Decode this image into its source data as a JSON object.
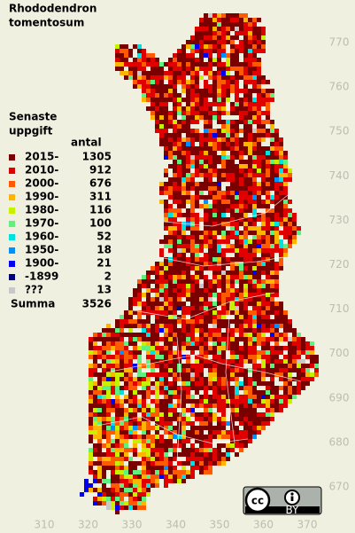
{
  "title": [
    "Rhododendron",
    "tomentosum"
  ],
  "legend": {
    "heading": [
      "Senaste",
      "uppgift"
    ],
    "count_header": "antal",
    "rows": [
      {
        "label": "2015-",
        "color": "#7a0000",
        "count": 1305
      },
      {
        "label": "2010-",
        "color": "#e00000",
        "count": 912
      },
      {
        "label": "2000-",
        "color": "#ff5a00",
        "count": 676
      },
      {
        "label": "1990-",
        "color": "#ffb400",
        "count": 311
      },
      {
        "label": "1980-",
        "color": "#c8f000",
        "count": 116
      },
      {
        "label": "1970-",
        "color": "#60f080",
        "count": 100
      },
      {
        "label": "1960-",
        "color": "#00e0e0",
        "count": 52
      },
      {
        "label": "1950-",
        "color": "#0090ff",
        "count": 18
      },
      {
        "label": "1900-",
        "color": "#0000f0",
        "count": 21
      },
      {
        "label": "-1899",
        "color": "#000080",
        "count": 2
      },
      {
        "label": "???",
        "color": "#c8c8c8",
        "count": 13
      }
    ],
    "total_label": "Summa",
    "total": 3526
  },
  "axes": {
    "x_ticks": [
      310,
      320,
      330,
      340,
      350,
      360,
      370
    ],
    "y_ticks": [
      670,
      680,
      690,
      700,
      710,
      720,
      730,
      740,
      750,
      760,
      770
    ]
  },
  "license": {
    "cc": "cc",
    "by": "BY"
  }
}
